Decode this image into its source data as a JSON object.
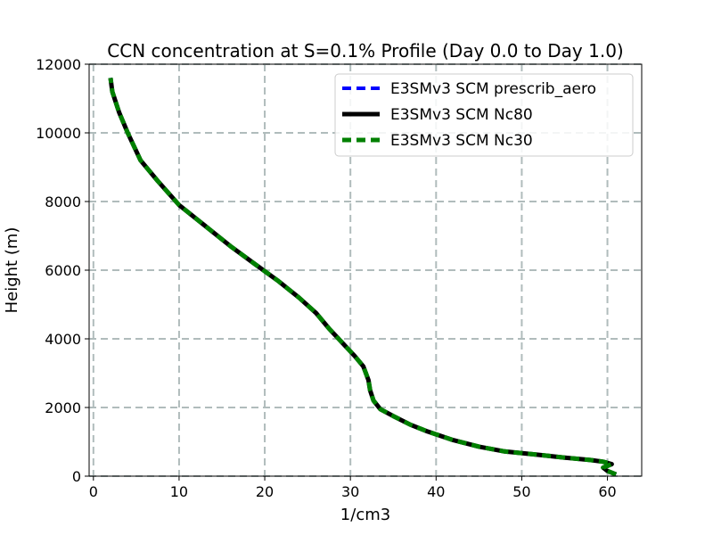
{
  "chart_data": {
    "type": "line",
    "title": "CCN concentration at S=0.1% Profile (Day 0.0 to Day 1.0)",
    "xlabel": "1/cm3",
    "ylabel": "Height (m)",
    "xlim": [
      -0.5,
      64
    ],
    "ylim": [
      0,
      12000
    ],
    "x_ticks": [
      0,
      10,
      20,
      30,
      40,
      50,
      60
    ],
    "y_ticks": [
      0,
      2000,
      4000,
      6000,
      8000,
      10000,
      12000
    ],
    "x_tick_labels": [
      "0",
      "10",
      "20",
      "30",
      "40",
      "50",
      "60"
    ],
    "y_tick_labels": [
      "0",
      "2000",
      "4000",
      "6000",
      "8000",
      "10000",
      "12000"
    ],
    "grid": true,
    "legend_position": "top-right",
    "series": [
      {
        "name": "E3SMv3 SCM prescrib_aero",
        "color": "#0000ff",
        "line_style": "dashed",
        "points": [
          [
            61.0,
            50
          ],
          [
            60.0,
            150
          ],
          [
            59.5,
            250
          ],
          [
            60.5,
            350
          ],
          [
            59.5,
            420
          ],
          [
            58.0,
            470
          ],
          [
            55.0,
            540
          ],
          [
            52.0,
            620
          ],
          [
            48.0,
            720
          ],
          [
            45.0,
            860
          ],
          [
            42.0,
            1050
          ],
          [
            39.0,
            1300
          ],
          [
            37.0,
            1500
          ],
          [
            35.0,
            1750
          ],
          [
            33.5,
            1950
          ],
          [
            32.7,
            2200
          ],
          [
            32.3,
            2500
          ],
          [
            32.1,
            2800
          ],
          [
            31.5,
            3200
          ],
          [
            30.5,
            3500
          ],
          [
            29.0,
            3900
          ],
          [
            27.5,
            4300
          ],
          [
            26.0,
            4750
          ],
          [
            24.0,
            5200
          ],
          [
            21.5,
            5700
          ],
          [
            19.0,
            6150
          ],
          [
            16.0,
            6700
          ],
          [
            13.0,
            7300
          ],
          [
            10.0,
            7900
          ],
          [
            7.5,
            8600
          ],
          [
            5.5,
            9200
          ],
          [
            4.0,
            10000
          ],
          [
            3.0,
            10600
          ],
          [
            2.2,
            11200
          ],
          [
            2.0,
            11600
          ]
        ]
      },
      {
        "name": "E3SMv3 SCM Nc80",
        "color": "#000000",
        "line_style": "solid",
        "points": [
          [
            61.0,
            50
          ],
          [
            60.0,
            150
          ],
          [
            59.5,
            250
          ],
          [
            60.5,
            350
          ],
          [
            59.5,
            420
          ],
          [
            58.0,
            470
          ],
          [
            55.0,
            540
          ],
          [
            52.0,
            620
          ],
          [
            48.0,
            720
          ],
          [
            45.0,
            860
          ],
          [
            42.0,
            1050
          ],
          [
            39.0,
            1300
          ],
          [
            37.0,
            1500
          ],
          [
            35.0,
            1750
          ],
          [
            33.5,
            1950
          ],
          [
            32.7,
            2200
          ],
          [
            32.3,
            2500
          ],
          [
            32.1,
            2800
          ],
          [
            31.5,
            3200
          ],
          [
            30.5,
            3500
          ],
          [
            29.0,
            3900
          ],
          [
            27.5,
            4300
          ],
          [
            26.0,
            4750
          ],
          [
            24.0,
            5200
          ],
          [
            21.5,
            5700
          ],
          [
            19.0,
            6150
          ],
          [
            16.0,
            6700
          ],
          [
            13.0,
            7300
          ],
          [
            10.0,
            7900
          ],
          [
            7.5,
            8600
          ],
          [
            5.5,
            9200
          ],
          [
            4.0,
            10000
          ],
          [
            3.0,
            10600
          ],
          [
            2.2,
            11200
          ],
          [
            2.0,
            11600
          ]
        ]
      },
      {
        "name": "E3SMv3 SCM Nc30",
        "color": "#008000",
        "line_style": "dashed",
        "points": [
          [
            61.0,
            50
          ],
          [
            60.0,
            150
          ],
          [
            59.5,
            250
          ],
          [
            60.5,
            350
          ],
          [
            59.5,
            420
          ],
          [
            58.0,
            470
          ],
          [
            55.0,
            540
          ],
          [
            52.0,
            620
          ],
          [
            48.0,
            720
          ],
          [
            45.0,
            860
          ],
          [
            42.0,
            1050
          ],
          [
            39.0,
            1300
          ],
          [
            37.0,
            1500
          ],
          [
            35.0,
            1750
          ],
          [
            33.5,
            1950
          ],
          [
            32.7,
            2200
          ],
          [
            32.3,
            2500
          ],
          [
            32.1,
            2800
          ],
          [
            31.5,
            3200
          ],
          [
            30.5,
            3500
          ],
          [
            29.0,
            3900
          ],
          [
            27.5,
            4300
          ],
          [
            26.0,
            4750
          ],
          [
            24.0,
            5200
          ],
          [
            21.5,
            5700
          ],
          [
            19.0,
            6150
          ],
          [
            16.0,
            6700
          ],
          [
            13.0,
            7300
          ],
          [
            10.0,
            7900
          ],
          [
            7.5,
            8600
          ],
          [
            5.5,
            9200
          ],
          [
            4.0,
            10000
          ],
          [
            3.0,
            10600
          ],
          [
            2.2,
            11200
          ],
          [
            2.0,
            11600
          ]
        ]
      }
    ]
  }
}
